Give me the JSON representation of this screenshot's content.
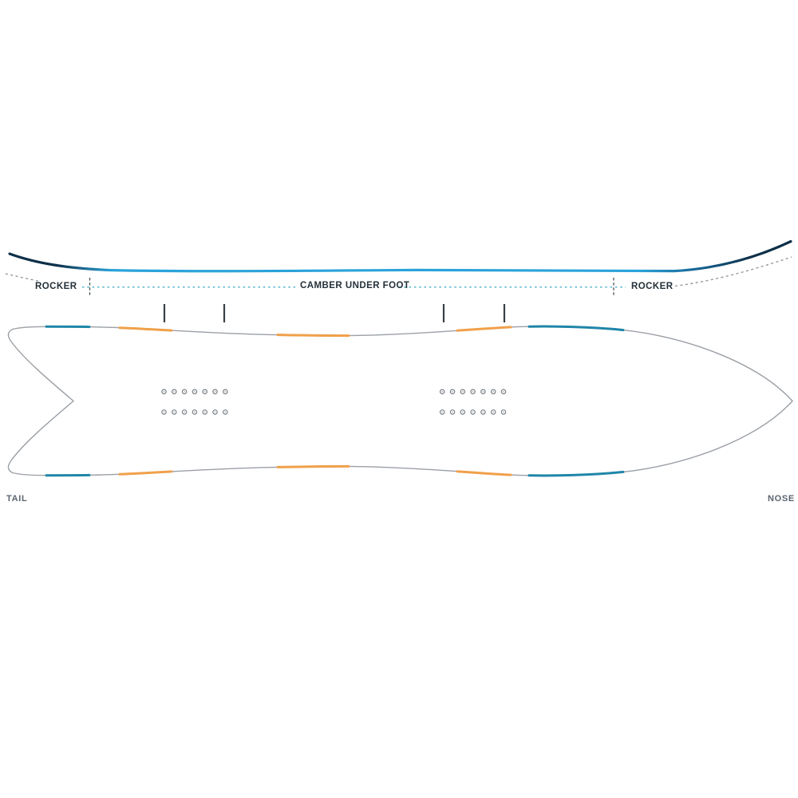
{
  "profile_view": {
    "rocker_left_label": "ROCKER",
    "camber_label": "CAMBER UNDER FOOT",
    "rocker_right_label": "ROCKER"
  },
  "board_top_view": {
    "tail_label": "TAIL",
    "nose_label": "NOSE",
    "insert_packs": [
      {
        "rows": 2,
        "columns": 7
      },
      {
        "rows": 2,
        "columns": 7
      }
    ]
  },
  "colors": {
    "profile_blue": "#2BA3DA",
    "profile_navy": "#0E3048",
    "edge_teal": "#1F86A8",
    "edge_orange": "#F0A04A",
    "outline_gray": "#9BA0A6",
    "hole_gray": "#7A8187",
    "dash_teal": "#56B5CB",
    "dash_gray": "#8A9199",
    "label_navy": "#243039",
    "label_gray": "#5B6570"
  }
}
